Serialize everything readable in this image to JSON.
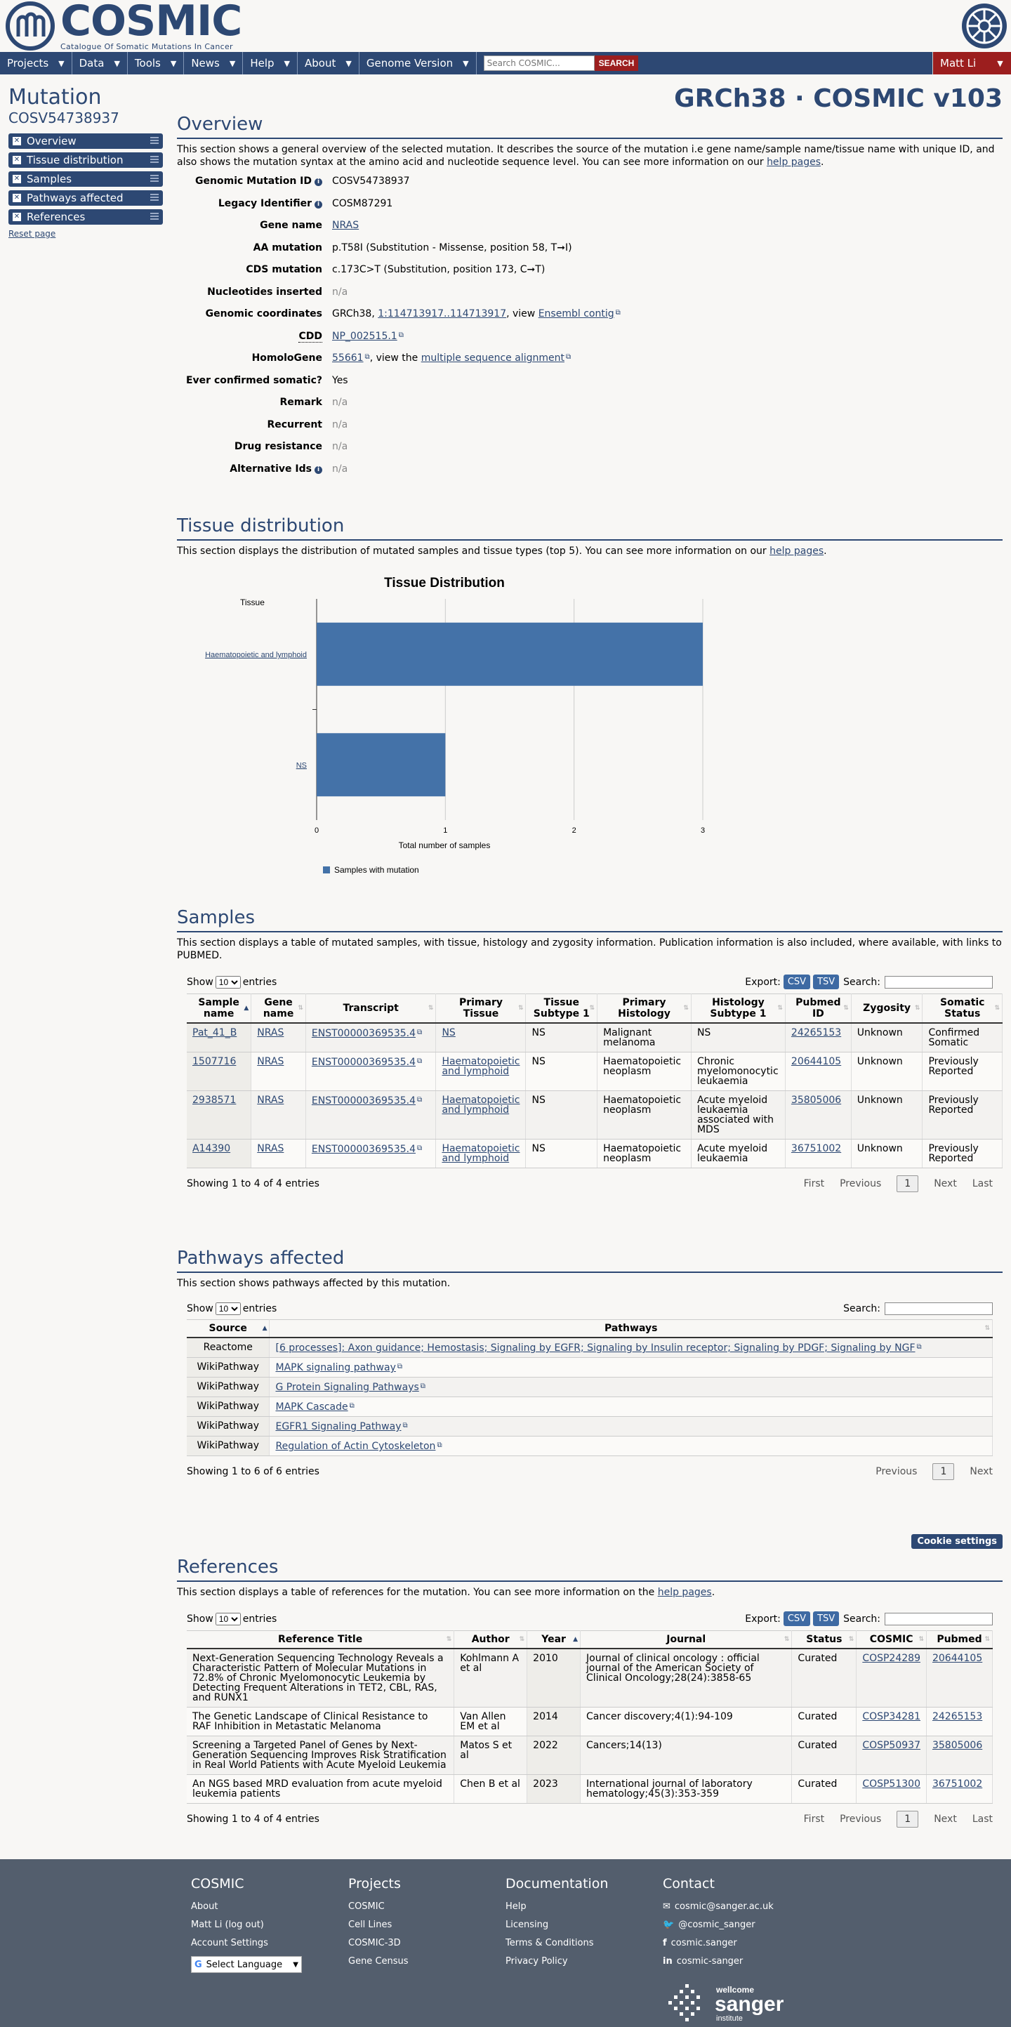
{
  "header": {
    "logo_word": "COSMIC",
    "logo_tagline": "Catalogue Of Somatic Mutations In Cancer"
  },
  "nav": {
    "items": [
      "Projects",
      "Data",
      "Tools",
      "News",
      "Help",
      "About",
      "Genome Version"
    ],
    "search_placeholder": "Search COSMIC...",
    "search_button": "SEARCH",
    "user": "Matt Li"
  },
  "sidebar": {
    "title": "Mutation",
    "id": "COSV54738937",
    "items": [
      "Overview",
      "Tissue distribution",
      "Samples",
      "Pathways affected",
      "References"
    ],
    "reset": "Reset page"
  },
  "version": "GRCh38 · COSMIC v103",
  "overview": {
    "title": "Overview",
    "desc_prefix": "This section shows a general overview of the selected mutation. It describes the source of the mutation i.e gene name/sample name/tissue name with unique ID, and also shows the mutation syntax at the amino acid and nucleotide sequence level. You can see more information on our ",
    "desc_link": "help pages",
    "desc_suffix": ".",
    "rows": {
      "genomic_id_label": "Genomic Mutation ID",
      "genomic_id": "COSV54738937",
      "legacy_label": "Legacy Identifier",
      "legacy": "COSM87291",
      "gene_label": "Gene name",
      "gene": "NRAS",
      "aa_label": "AA mutation",
      "aa": "p.T58I (Substitution - Missense, position 58, T➞I)",
      "cds_label": "CDS mutation",
      "cds": "c.173C>T (Substitution, position 173, C➞T)",
      "nt_ins_label": "Nucleotides inserted",
      "nt_ins": "n/a",
      "coords_label": "Genomic coordinates",
      "coords_prefix": "GRCh38, ",
      "coords_link": "1:114713917..114713917",
      "coords_mid": ", view ",
      "coords_link2": "Ensembl contig",
      "cdd_label": "CDD",
      "cdd_link": "NP_002515.1",
      "homolo_label": "HomoloGene",
      "homolo_link": "55661",
      "homolo_mid": ", view the ",
      "homolo_link2": "multiple sequence alignment",
      "somatic_label": "Ever confirmed somatic?",
      "somatic": "Yes",
      "remark_label": "Remark",
      "remark": "n/a",
      "recurrent_label": "Recurrent",
      "recurrent": "n/a",
      "drug_label": "Drug resistance",
      "drug": "n/a",
      "alt_label": "Alternative Ids",
      "alt": "n/a"
    }
  },
  "tissue": {
    "title": "Tissue distribution",
    "desc_prefix": "This section displays the distribution of mutated samples and tissue types (top 5). You can see more information on our ",
    "desc_link": "help pages",
    "desc_suffix": "."
  },
  "chart_data": {
    "type": "bar",
    "orientation": "horizontal",
    "title": "Tissue Distribution",
    "ylabel": "Tissue",
    "xlabel": "Total number of samples",
    "categories": [
      "Haematopoietic and lymphoid",
      "NS"
    ],
    "series": [
      {
        "name": "Samples with mutation",
        "values": [
          3,
          1
        ]
      }
    ],
    "xlim": [
      0,
      3
    ],
    "xticks": [
      "0",
      "1",
      "2",
      "3"
    ],
    "grid": true,
    "legend": "bottom",
    "color": "#4472a8"
  },
  "samples": {
    "title": "Samples",
    "desc": "This section displays a table of mutated samples, with tissue, histology and zygosity information. Publication information is also included, where available, with links to PUBMED.",
    "show": "Show",
    "entries_val": "10",
    "entries": "entries",
    "export": "Export:",
    "csv": "CSV",
    "tsv": "TSV",
    "search": "Search:",
    "columns": [
      "Sample name",
      "Gene name",
      "Transcript",
      "Primary Tissue",
      "Tissue Subtype 1",
      "Primary Histology",
      "Histology Subtype 1",
      "Pubmed ID",
      "Zygosity",
      "Somatic Status"
    ],
    "rows": [
      [
        "Pat_41_B",
        "NRAS",
        "ENST00000369535.4",
        "NS",
        "NS",
        "Malignant melanoma",
        "NS",
        "24265153",
        "Unknown",
        "Confirmed Somatic"
      ],
      [
        "1507716",
        "NRAS",
        "ENST00000369535.4",
        "Haematopoietic and lymphoid",
        "NS",
        "Haematopoietic neoplasm",
        "Chronic myelomonocytic leukaemia",
        "20644105",
        "Unknown",
        "Previously Reported"
      ],
      [
        "2938571",
        "NRAS",
        "ENST00000369535.4",
        "Haematopoietic and lymphoid",
        "NS",
        "Haematopoietic neoplasm",
        "Acute myeloid leukaemia associated with MDS",
        "35805006",
        "Unknown",
        "Previously Reported"
      ],
      [
        "A14390",
        "NRAS",
        "ENST00000369535.4",
        "Haematopoietic and lymphoid",
        "NS",
        "Haematopoietic neoplasm",
        "Acute myeloid leukaemia",
        "36751002",
        "Unknown",
        "Previously Reported"
      ]
    ],
    "info": "Showing 1 to 4 of 4 entries",
    "pager": [
      "First",
      "Previous",
      "1",
      "Next",
      "Last"
    ]
  },
  "pathways": {
    "title": "Pathways affected",
    "desc": "This section shows pathways affected by this mutation.",
    "show": "Show",
    "entries_val": "10",
    "entries": "entries",
    "search": "Search:",
    "columns": [
      "Source",
      "Pathways"
    ],
    "rows": [
      [
        "Reactome",
        "[6 processes]: Axon guidance; Hemostasis; Signaling by EGFR; Signaling by Insulin receptor; Signaling by PDGF; Signaling by NGF"
      ],
      [
        "WikiPathway",
        "MAPK signaling pathway"
      ],
      [
        "WikiPathway",
        "G Protein Signaling Pathways"
      ],
      [
        "WikiPathway",
        "MAPK Cascade"
      ],
      [
        "WikiPathway",
        "EGFR1 Signaling Pathway"
      ],
      [
        "WikiPathway",
        "Regulation of Actin Cytoskeleton"
      ]
    ],
    "info": "Showing 1 to 6 of 6 entries",
    "pager": [
      "Previous",
      "1",
      "Next"
    ]
  },
  "references": {
    "title": "References",
    "cookie": "Cookie settings",
    "desc_prefix": "This section displays a table of references for the mutation. You can see more information on the ",
    "desc_link": "help pages",
    "desc_suffix": ".",
    "show": "Show",
    "entries_val": "10",
    "entries": "entries",
    "export": "Export:",
    "csv": "CSV",
    "tsv": "TSV",
    "search": "Search:",
    "columns": [
      "Reference Title",
      "Author",
      "Year",
      "Journal",
      "Status",
      "COSMIC",
      "Pubmed"
    ],
    "rows": [
      [
        "Next-Generation Sequencing Technology Reveals a Characteristic Pattern of Molecular Mutations in 72.8% of Chronic Myelomonocytic Leukemia by Detecting Frequent Alterations in TET2, CBL, RAS, and RUNX1",
        "Kohlmann A et al",
        "2010",
        "Journal of clinical oncology : official journal of the American Society of Clinical Oncology;28(24):3858-65",
        "Curated",
        "COSP24289",
        "20644105"
      ],
      [
        "The Genetic Landscape of Clinical Resistance to RAF Inhibition in Metastatic Melanoma",
        "Van Allen EM et al",
        "2014",
        "Cancer discovery;4(1):94-109",
        "Curated",
        "COSP34281",
        "24265153"
      ],
      [
        "Screening a Targeted Panel of Genes by Next-Generation Sequencing Improves Risk Stratification in Real World Patients with Acute Myeloid Leukemia",
        "Matos S et al",
        "2022",
        "Cancers;14(13)",
        "Curated",
        "COSP50937",
        "35805006"
      ],
      [
        "An NGS based MRD evaluation from acute myeloid leukemia patients",
        "Chen B et al",
        "2023",
        "International journal of laboratory hematology;45(3):353-359",
        "Curated",
        "COSP51300",
        "36751002"
      ]
    ],
    "info": "Showing 1 to 4 of 4 entries",
    "pager": [
      "First",
      "Previous",
      "1",
      "Next",
      "Last"
    ]
  },
  "footer": {
    "cosmic": {
      "title": "COSMIC",
      "links": [
        "About",
        "Matt Li (log out)",
        "Account Settings"
      ]
    },
    "language": "Select Language",
    "projects": {
      "title": "Projects",
      "links": [
        "COSMIC",
        "Cell Lines",
        "COSMIC-3D",
        "Gene Census"
      ]
    },
    "docs": {
      "title": "Documentation",
      "links": [
        "Help",
        "Licensing",
        "Terms & Conditions",
        "Privacy Policy"
      ]
    },
    "contact": {
      "title": "Contact",
      "links": [
        "cosmic@sanger.ac.uk",
        "@cosmic_sanger",
        "cosmic.sanger",
        "cosmic-sanger"
      ]
    },
    "sanger_top": "wellcome",
    "sanger_main": "sanger",
    "sanger_bottom": "institute"
  }
}
